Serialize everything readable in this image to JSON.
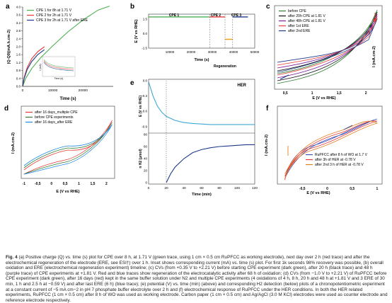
{
  "figure_label": "Fig. 4",
  "caption": "(a) Positive charge (Q) vs. time (s) plot for CPE over 8 h, at 1.71 V (green trace, using 1 cm × 0.5 cm RuPFCC as working electrode), next day over 2 h (red trace) and after the electrochemical regeneration of the electrode (ERE, see ESI†) over 1 h. Inset shows corresponding current (mA) vs. time (s) plot. For first 1k seconds 98% recovery was possible, (b) overall oxidation and ERE (electrochemical regeneration experiment) timeline; (c) CVs (from +0.35 V to +2.21 V) before starting CPE experiment (dark green), after 20 h (black trace) and 48 h (purple trace) of CPE experiments at +1.81 V. Red and blue traces show regeneration of the electrocatalytic activity after 68 h of oxidation; (d) CVs (from −1.0 V to +2.21 V) of RuPFCC before CPE experiment (dark green), after 16 days (red) kept in the same buffer solution under N2 and multiple CPE experiments (4 oxidations of 4 h, 8 h, 20 h and 48 h at +1.81 V and 3 ERE of 30 min, 1 h and 2.5 h at −0.59 V) and after last ERE (6 h) (blue trace); (e) potential (V) vs. time (min) (above) and corresponding H2 detection (below) plots of a chronopotentiometric experiment at a constant current of −5 mA cm−2 in pH 7 phosphate buffer electrolyte over 2 h and (f) electrochemical response of RuPFCC under the HER conditions. In both the HER related experiments, RuPFCC (1 cm × 0.5 cm) after 8 h of WO was used as working electrode. Carbon paper (1 cm × 0.5 cm) and Ag/AgCl (3.0 M KCl) electrodes were used as counter electrode and reference electrode respectively.",
  "chart_data": [
    {
      "panel": "a",
      "type": "line",
      "xlabel": "Time (s)",
      "ylabel": "|Q-Q0|(mA.h.cm-2)",
      "xlim": [
        0,
        30000
      ],
      "ylim": [
        0,
        4.0
      ],
      "x_ticks": [
        "0",
        "10000",
        "20000"
      ],
      "y_ticks": [
        "0.0",
        "0.4",
        "0.8",
        "1.2",
        "1.6",
        "2.0",
        "2.4",
        "2.8",
        "3.2",
        "3.6",
        "4.0"
      ],
      "legend_position": "top-left",
      "series": [
        {
          "name": "CPE 1 for 8h at 1.71 V",
          "color": "#4caf50",
          "x": [
            0,
            1000,
            3000,
            6000,
            10000,
            15000,
            20000,
            25000,
            28800
          ],
          "y": [
            0,
            0.4,
            0.9,
            1.45,
            2.05,
            2.75,
            3.35,
            3.85,
            4.05
          ]
        },
        {
          "name": "CPE 2 for 2h at 1.71 V",
          "color": "#e53935",
          "x": [
            0,
            500,
            1500,
            3000,
            5000,
            7200
          ],
          "y": [
            0,
            0.45,
            0.95,
            1.4,
            1.75,
            2.0
          ]
        },
        {
          "name": "CPE 3 for 2h at 1.71 V after ERE",
          "color": "#1e3a8a",
          "x": [
            0,
            500,
            1500,
            3000,
            5000,
            7200
          ],
          "y": [
            0,
            0.4,
            0.85,
            1.25,
            1.6,
            1.85
          ]
        }
      ],
      "inset": {
        "xlabel": "Time (s)",
        "ylabel": "I (mA)",
        "y_ticks": [
          "0.1",
          "0.2",
          "0.3",
          "0.4"
        ]
      }
    },
    {
      "panel": "b",
      "type": "line",
      "xlabel": "Time (s)",
      "ylabel": "E (V vs RHE)",
      "xlim": [
        0,
        50000
      ],
      "ylim": [
        -1.5,
        2.0
      ],
      "x_ticks": [
        "10000",
        "20000",
        "30000",
        "40000",
        "50000"
      ],
      "y_ticks": [
        "1.5",
        "0.0",
        "-1.5"
      ],
      "annotations": [
        "CPE 1",
        "CPE 2",
        "CPE 3",
        "Regeneration"
      ],
      "series": [
        {
          "name": "CPE 1",
          "color": "#4caf50",
          "x": [
            0,
            28800
          ],
          "y": [
            1.71,
            1.71
          ]
        },
        {
          "name": "CPE 2",
          "color": "#e53935",
          "x": [
            28800,
            36000
          ],
          "y": [
            1.71,
            1.71
          ]
        },
        {
          "name": "Regeneration",
          "color": "#f39c12",
          "x": [
            36000,
            39600
          ],
          "y": [
            -0.59,
            -0.59
          ]
        },
        {
          "name": "CPE 3",
          "color": "#1e3a8a",
          "x": [
            39600,
            46800
          ],
          "y": [
            1.71,
            1.71
          ]
        }
      ]
    },
    {
      "panel": "c",
      "type": "line",
      "xlabel": "E (V vs RHE)",
      "ylabel": "I (mA.cm-2)",
      "xlim": [
        0.3,
        2.3
      ],
      "x_ticks": [
        "0,5",
        "1",
        "1,5",
        "2"
      ],
      "legend_position": "top-left",
      "series": [
        {
          "name": "before CPE",
          "color": "#2e7d32"
        },
        {
          "name": "after 20h CPE at 1.81 V",
          "color": "#111111"
        },
        {
          "name": "after 48h CPE at 1.81 V",
          "color": "#7b1fa2"
        },
        {
          "name": "after 1st ERE",
          "color": "#e53935"
        },
        {
          "name": "after 2nd ERE",
          "color": "#1e3a8a"
        }
      ]
    },
    {
      "panel": "d",
      "type": "line",
      "xlabel": "E (V vs RHE)",
      "ylabel": "I (mA.cm-2)",
      "xlim": [
        -1.1,
        2.3
      ],
      "x_ticks": [
        "-1",
        "-0,5",
        "0",
        "0,5",
        "1",
        "1,5",
        "2"
      ],
      "legend_position": "top-left",
      "series": [
        {
          "name": "after 16 days_multiple CPE",
          "color": "#e53935"
        },
        {
          "name": "before CPE experiments",
          "color": "#2e7d32"
        },
        {
          "name": "after 16 days_after ERE",
          "color": "#1e88e5"
        }
      ]
    },
    {
      "panel": "e",
      "type": "line",
      "title": "HER",
      "xlabel": "Time (min)",
      "xlim": [
        0,
        120
      ],
      "x_ticks": [
        "0",
        "20",
        "40",
        "60",
        "80",
        "100",
        "120"
      ],
      "top": {
        "ylabel": "E (V vs RHE)",
        "ylim": [
          -1.0,
          0.0
        ],
        "y_ticks": [
          "0.0",
          "-0.3",
          "-0.6",
          "-0.9"
        ],
        "series": [
          {
            "color": "#3fa7d6",
            "x": [
              0,
              5,
              10,
              15,
              20,
              30,
              40,
              50,
              60,
              70,
              80,
              120
            ],
            "y": [
              -0.02,
              -0.3,
              -0.5,
              -0.62,
              -0.7,
              -0.78,
              -0.82,
              -0.84,
              -0.85,
              -0.86,
              -0.86,
              -0.86
            ]
          }
        ]
      },
      "bottom": {
        "ylabel": "n H2 (µmol)",
        "ylim": [
          0,
          80
        ],
        "y_ticks": [
          "0",
          "20",
          "40",
          "60",
          "80"
        ],
        "series": [
          {
            "color": "#1e3a8a",
            "x": [
              20,
              25,
              30,
              40,
              50,
              60,
              70,
              80,
              90,
              100,
              110,
              120
            ],
            "y": [
              0,
              15,
              26,
              40,
              50,
              55,
              58,
              60,
              61,
              62,
              63,
              63
            ]
          }
        ]
      }
    },
    {
      "panel": "f",
      "type": "line",
      "xlabel": "E (V vs RHE)",
      "ylabel": "I (mA.cm-2)",
      "xlim": [
        -1.0,
        1.1
      ],
      "x_ticks": [
        "-0,5",
        "0",
        "0,5",
        "1"
      ],
      "legend_position": "bottom-right",
      "series": [
        {
          "name": "RuPFCC after 8 h of WO at 1.7 V",
          "color": "#3f51b5"
        },
        {
          "name": "after 3h of HER at -0.78 V",
          "color": "#e53935"
        },
        {
          "name": "after 2nd 3 h of HER at -0.78 V",
          "color": "#e67e22"
        }
      ]
    }
  ]
}
